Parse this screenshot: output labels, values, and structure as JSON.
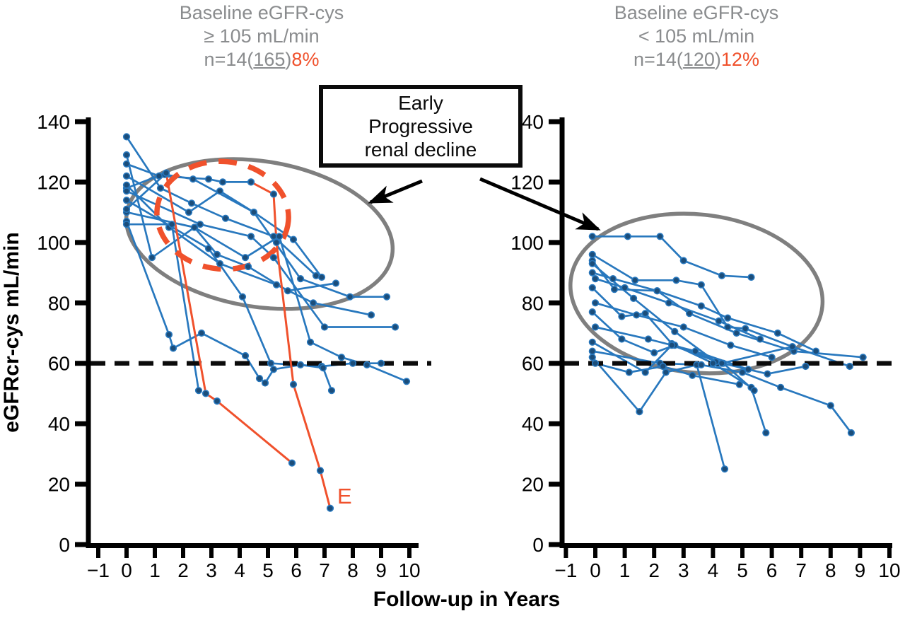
{
  "figure": {
    "y_axis_label": "eGFRcr-cys mL/min",
    "x_axis_label": "Follow-up in Years",
    "event_label": "E",
    "annotation_box": {
      "line1": "Early",
      "line2": "Progressive",
      "line3": "renal decline"
    },
    "left_title": {
      "line1": "Baseline eGFR-cys",
      "line2": "≥ 105 mL/min",
      "n_prefix": "n=14(",
      "n_value": "165",
      "n_suffix": ")",
      "pct": "8%"
    },
    "right_title": {
      "line1": "Baseline eGFR-cys",
      "line2": "< 105 mL/min",
      "n_prefix": "n=14(",
      "n_value": "120",
      "n_suffix": ")",
      "pct": "12%"
    },
    "colors": {
      "line_blue": "#2878BE",
      "marker_fill": "#1B4D7A",
      "accent_orange": "#F0512C",
      "ellipse_gray": "#7F7F7F",
      "title_gray": "#8A8C8E",
      "axis_black": "#000000"
    }
  },
  "chart_data": [
    {
      "type": "line",
      "panel": "left",
      "title": "Baseline eGFR-cys ≥ 105 mL/min",
      "n_annotation": "n=14(165)8%",
      "xlabel": "Follow-up in Years",
      "ylabel": "eGFRcr-cys mL/min",
      "xlim": [
        -1,
        10
      ],
      "ylim": [
        0,
        140
      ],
      "x_ticks": [
        -1,
        0,
        1,
        2,
        3,
        4,
        5,
        6,
        7,
        8,
        9,
        10
      ],
      "x_tick_labels": [
        "−1",
        "0",
        "1",
        "2",
        "3",
        "4",
        "5",
        "6",
        "7",
        "8",
        "9",
        "10"
      ],
      "y_ticks": [
        0,
        20,
        40,
        60,
        80,
        100,
        120,
        140
      ],
      "reference_line_y": 60,
      "series": [
        {
          "name": "p1",
          "color": "blue",
          "x": [
            0,
            1.2,
            2.3,
            3.5,
            5.2,
            6.7
          ],
          "y": [
            135,
            118,
            113,
            108,
            102,
            89
          ]
        },
        {
          "name": "p2",
          "color": "blue",
          "x": [
            0,
            0.9,
            2.4,
            3.2,
            4.3,
            5.7,
            7.4
          ],
          "y": [
            129,
            95,
            105,
            96,
            92,
            84,
            86.5
          ]
        },
        {
          "name": "p3",
          "color": "blue",
          "x": [
            0,
            1.15,
            2.9,
            3.4,
            4.4
          ],
          "y": [
            126,
            122,
            121,
            120,
            120
          ]
        },
        {
          "name": "p4",
          "color": "blue",
          "x": [
            0,
            1.4
          ],
          "y": [
            118,
            123
          ]
        },
        {
          "name": "p5",
          "color": "blue",
          "x": [
            0,
            2.2,
            3.3,
            4.5,
            5.9,
            6.9
          ],
          "y": [
            122,
            110,
            117,
            110,
            101,
            88.5
          ]
        },
        {
          "name": "p6",
          "color": "blue",
          "x": [
            0,
            1.5,
            3.3,
            5.3,
            6.6,
            8.65
          ],
          "y": [
            119,
            105,
            93,
            86,
            80,
            76
          ]
        },
        {
          "name": "p7",
          "color": "blue",
          "x": [
            0,
            2.6,
            4.4,
            5.2,
            7.0,
            9.5
          ],
          "y": [
            117,
            106,
            102,
            95,
            72,
            72
          ]
        },
        {
          "name": "p8",
          "color": "blue",
          "x": [
            0,
            2.9,
            4.1,
            5.1,
            6.9,
            8.0,
            9.0
          ],
          "y": [
            114,
            98,
            82,
            60,
            59,
            60,
            60
          ]
        },
        {
          "name": "p9",
          "color": "blue",
          "x": [
            0,
            2.4,
            4.2,
            5.4,
            6.5,
            7.6,
            8.5,
            9.9
          ],
          "y": [
            110,
            105,
            95,
            102,
            67,
            62,
            59.5,
            54
          ]
        },
        {
          "name": "p10",
          "color": "blue",
          "x": [
            0,
            1.35,
            2.35,
            4.5,
            6.15,
            7.9,
            9.2
          ],
          "y": [
            111,
            122.5,
            121,
            110,
            88,
            82,
            82
          ]
        },
        {
          "name": "p11",
          "color": "blue",
          "x": [
            0,
            1.5,
            1.65,
            2.65,
            4.2,
            4.7,
            4.9,
            5.2,
            6.15,
            6.95,
            7.25
          ],
          "y": [
            107,
            69.5,
            65,
            70,
            62.5,
            55,
            53.5,
            58,
            59.5,
            58.5,
            51
          ]
        },
        {
          "name": "p12",
          "color": "blue",
          "x": [
            0,
            1.6,
            2.55
          ],
          "y": [
            106,
            106,
            51
          ]
        },
        {
          "name": "rapid-decline-1",
          "color": "orange",
          "x": [
            1.4,
            2.8,
            3.2,
            5.85
          ],
          "y": [
            123,
            50,
            47.5,
            27
          ]
        },
        {
          "name": "rapid-decline-2",
          "color": "orange",
          "x": [
            4.4,
            5.2,
            5.3,
            5.9,
            6.85,
            7.2
          ],
          "y": [
            120,
            116,
            100,
            53,
            24.5,
            12
          ],
          "end_label": "E"
        }
      ],
      "ellipses": [
        {
          "name": "early-progressive-region-left",
          "style": "solid-gray",
          "cx_year": 4.7,
          "cy_value": 102.8,
          "rx_years": 4.75,
          "ry_units": 24.1,
          "rotate_deg": 9
        },
        {
          "name": "highlight-region-orange",
          "style": "dashed-orange",
          "cx_year": 3.4,
          "cy_value": 109,
          "rx_years": 2.33,
          "ry_units": 17.8,
          "rotate_deg": 5
        }
      ]
    },
    {
      "type": "line",
      "panel": "right",
      "title": "Baseline eGFR-cys < 105 mL/min",
      "n_annotation": "n=14(120)12%",
      "xlabel": "Follow-up in Years",
      "ylabel": "eGFRcr-cys mL/min",
      "xlim": [
        -1,
        10
      ],
      "ylim": [
        0,
        140
      ],
      "x_ticks": [
        -1,
        0,
        1,
        2,
        3,
        4,
        5,
        6,
        7,
        8,
        9,
        10
      ],
      "x_tick_labels": [
        "−1",
        "0",
        "1",
        "2",
        "3",
        "4",
        "5",
        "6",
        "7",
        "8",
        "9",
        "10"
      ],
      "y_ticks": [
        0,
        20,
        40,
        60,
        80,
        100,
        120,
        140
      ],
      "reference_line_y": 60,
      "series": [
        {
          "name": "q1",
          "color": "blue",
          "x": [
            -0.1,
            1.1,
            2.2,
            3.0,
            4.3,
            5.3
          ],
          "y": [
            102,
            102,
            102,
            94,
            89,
            88.5
          ]
        },
        {
          "name": "q2",
          "color": "blue",
          "x": [
            -0.1,
            1.35,
            2.75,
            3.6,
            4.5,
            5.1,
            6.7
          ],
          "y": [
            96,
            87.5,
            87.5,
            86,
            72,
            71.5,
            65.5
          ]
        },
        {
          "name": "q3",
          "color": "blue",
          "x": [
            -0.1,
            0.65,
            2.1,
            3.2,
            4.8,
            6.75,
            9.1
          ],
          "y": [
            94,
            84.5,
            84,
            76.5,
            70,
            64,
            62
          ]
        },
        {
          "name": "q4",
          "color": "blue",
          "x": [
            -0.1,
            1.3,
            2.7,
            4.1,
            5.85,
            7.15
          ],
          "y": [
            93,
            81.5,
            70.5,
            60.5,
            56.5,
            59
          ]
        },
        {
          "name": "q5",
          "color": "blue",
          "x": [
            -0.1,
            0.9,
            1.7,
            2.6,
            4.0,
            5.3,
            5.8
          ],
          "y": [
            85,
            75.5,
            76.5,
            66.5,
            60,
            52,
            37
          ]
        },
        {
          "name": "q6",
          "color": "blue",
          "x": [
            -0.1,
            0.9,
            2.0,
            2.7,
            4.35,
            5.4
          ],
          "y": [
            77,
            68,
            63.5,
            66,
            60,
            51
          ]
        },
        {
          "name": "q7",
          "color": "blue",
          "x": [
            -0.1,
            1.5,
            2.4,
            3.45,
            4.4
          ],
          "y": [
            62,
            44,
            57,
            59.5,
            25
          ]
        },
        {
          "name": "q8",
          "color": "blue",
          "x": [
            -0.1,
            1.7,
            2.6,
            4.3,
            6.7,
            8.65
          ],
          "y": [
            67,
            57,
            66,
            60,
            65.5,
            59
          ]
        },
        {
          "name": "q9",
          "color": "blue",
          "x": [
            -0.1,
            2.2,
            3.6,
            5.0,
            6.3,
            8.0,
            8.7
          ],
          "y": [
            64,
            60,
            59.5,
            57,
            52,
            46,
            37
          ]
        },
        {
          "name": "q10",
          "color": "blue",
          "x": [
            -0.1,
            0.6,
            2.1,
            3.6,
            4.5,
            6.2,
            7.5
          ],
          "y": [
            90,
            88,
            84,
            79,
            75,
            70,
            64
          ]
        },
        {
          "name": "q11",
          "color": "blue",
          "x": [
            0,
            1.0,
            2.5,
            4.2,
            5.6
          ],
          "y": [
            88,
            85,
            80,
            74,
            68
          ]
        },
        {
          "name": "q12",
          "color": "blue",
          "x": [
            0,
            1.4,
            3.0,
            4.6,
            6.0
          ],
          "y": [
            80,
            76,
            72,
            66,
            62
          ]
        },
        {
          "name": "q13",
          "color": "blue",
          "x": [
            0,
            1.8,
            3.4,
            5.2
          ],
          "y": [
            72,
            68,
            64,
            58
          ]
        },
        {
          "name": "q14",
          "color": "blue",
          "x": [
            0,
            1.15,
            2.3,
            3.3,
            4.9
          ],
          "y": [
            60,
            57,
            59,
            56,
            53
          ]
        }
      ],
      "ellipses": [
        {
          "name": "early-progressive-region-right",
          "style": "solid-gray",
          "cx_year": 3.44,
          "cy_value": 83.1,
          "rx_years": 4.3,
          "ry_units": 26.2,
          "rotate_deg": 6
        }
      ]
    }
  ]
}
